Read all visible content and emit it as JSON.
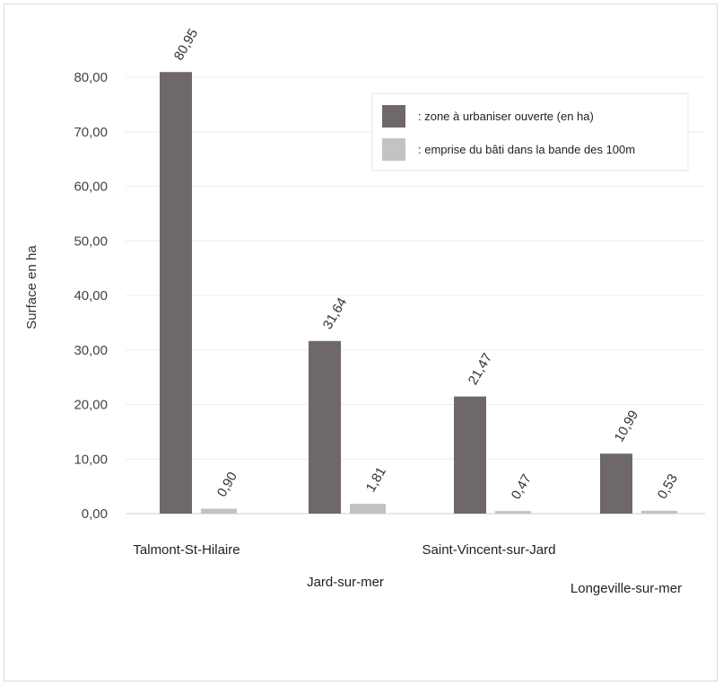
{
  "chart_data": {
    "type": "bar",
    "categories": [
      "Talmont-St-Hilaire",
      "Jard-sur-mer",
      "Saint-Vincent-sur-Jard",
      "Longeville-sur-mer"
    ],
    "series": [
      {
        "name": ": zone à urbaniser ouverte (en ha)",
        "values": [
          80.95,
          31.64,
          21.47,
          10.99
        ],
        "labels": [
          "80,95",
          "31,64",
          "21,47",
          "10,99"
        ],
        "color": "#6f6868"
      },
      {
        "name": ": emprise du bâti dans la bande des 100m",
        "values": [
          0.9,
          1.81,
          0.47,
          0.53
        ],
        "labels": [
          "0,90",
          "1,81",
          "0,47",
          "0,53"
        ],
        "color": "#c3c3c3"
      }
    ],
    "title": "",
    "xlabel": "",
    "ylabel": "Surface en ha",
    "ylim": [
      0,
      80
    ],
    "yticks": [
      "0,00",
      "10,00",
      "20,00",
      "30,00",
      "40,00",
      "50,00",
      "60,00",
      "70,00",
      "80,00"
    ],
    "grid": true,
    "legend": "top-right"
  }
}
